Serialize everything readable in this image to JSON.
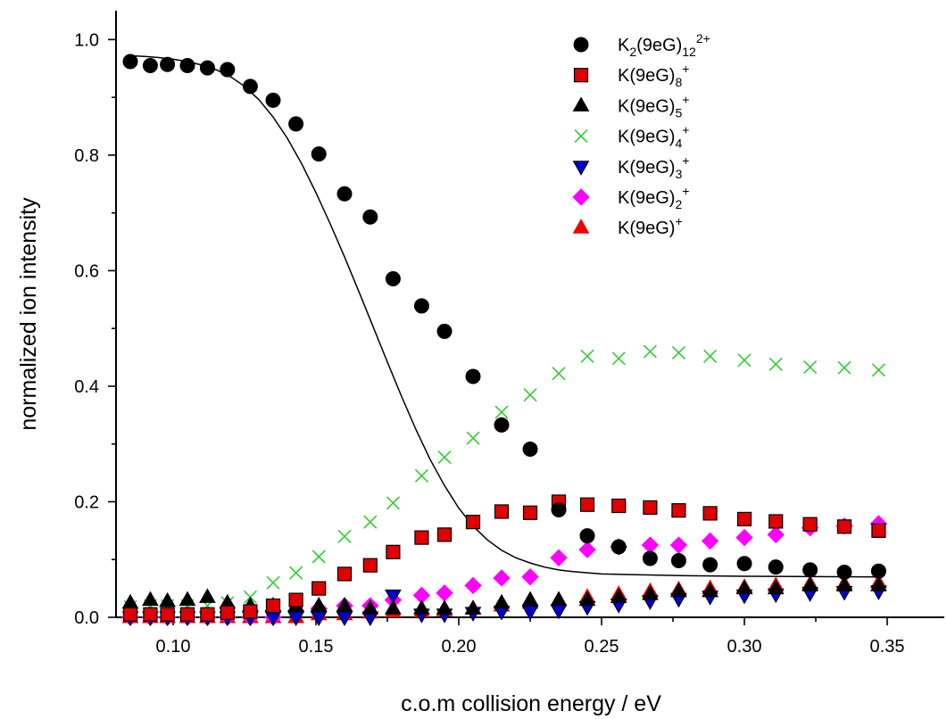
{
  "chart_data": {
    "type": "scatter",
    "title": "",
    "xlabel": "c.o.m collision energy / eV",
    "ylabel": "normalized ion intensity",
    "xlim": [
      0.08,
      0.37
    ],
    "ylim": [
      0,
      1.05
    ],
    "x_ticks": [
      "0.10",
      "0.15",
      "0.20",
      "0.25",
      "0.30",
      "0.35"
    ],
    "y_ticks": [
      "0.0",
      "0.2",
      "0.4",
      "0.6",
      "0.8",
      "1.0"
    ],
    "grid": false,
    "legend_position": "top-right",
    "fit_curve": {
      "series": "K2(9eG)12 2+",
      "type": "sigmoid",
      "color": "#000000",
      "points": [
        [
          0.085,
          0.972
        ],
        [
          0.09,
          0.971
        ],
        [
          0.095,
          0.969
        ],
        [
          0.1,
          0.966
        ],
        [
          0.105,
          0.962
        ],
        [
          0.11,
          0.956
        ],
        [
          0.115,
          0.948
        ],
        [
          0.12,
          0.936
        ],
        [
          0.125,
          0.919
        ],
        [
          0.13,
          0.896
        ],
        [
          0.135,
          0.866
        ],
        [
          0.14,
          0.829
        ],
        [
          0.145,
          0.785
        ],
        [
          0.15,
          0.735
        ],
        [
          0.155,
          0.681
        ],
        [
          0.16,
          0.624
        ],
        [
          0.165,
          0.564
        ],
        [
          0.17,
          0.503
        ],
        [
          0.175,
          0.442
        ],
        [
          0.18,
          0.382
        ],
        [
          0.185,
          0.325
        ],
        [
          0.19,
          0.273
        ],
        [
          0.195,
          0.228
        ],
        [
          0.2,
          0.189
        ],
        [
          0.205,
          0.158
        ],
        [
          0.21,
          0.134
        ],
        [
          0.215,
          0.116
        ],
        [
          0.22,
          0.103
        ],
        [
          0.225,
          0.094
        ],
        [
          0.23,
          0.087
        ],
        [
          0.235,
          0.082
        ],
        [
          0.24,
          0.079
        ],
        [
          0.245,
          0.077
        ],
        [
          0.25,
          0.075
        ],
        [
          0.26,
          0.074
        ],
        [
          0.27,
          0.073
        ],
        [
          0.28,
          0.072
        ],
        [
          0.3,
          0.071
        ],
        [
          0.347,
          0.07
        ]
      ]
    },
    "series": [
      {
        "label_main": "K",
        "label_sub1": "2",
        "label_mid": "(9eG)",
        "label_sub2": "12",
        "label_sup": "2+",
        "marker": "circle",
        "fill": "#000000",
        "stroke": "#000000",
        "points": [
          [
            0.085,
            0.962
          ],
          [
            0.092,
            0.955
          ],
          [
            0.098,
            0.957
          ],
          [
            0.105,
            0.955
          ],
          [
            0.112,
            0.951
          ],
          [
            0.119,
            0.948
          ],
          [
            0.127,
            0.919
          ],
          [
            0.135,
            0.895
          ],
          [
            0.143,
            0.854
          ],
          [
            0.151,
            0.802
          ],
          [
            0.16,
            0.733
          ],
          [
            0.169,
            0.693
          ],
          [
            0.177,
            0.586
          ],
          [
            0.187,
            0.539
          ],
          [
            0.195,
            0.495
          ],
          [
            0.205,
            0.417
          ],
          [
            0.215,
            0.333
          ],
          [
            0.225,
            0.291
          ],
          [
            0.235,
            0.186
          ],
          [
            0.245,
            0.141
          ],
          [
            0.256,
            0.122
          ],
          [
            0.267,
            0.102
          ],
          [
            0.277,
            0.098
          ],
          [
            0.288,
            0.091
          ],
          [
            0.3,
            0.093
          ],
          [
            0.311,
            0.087
          ],
          [
            0.323,
            0.082
          ],
          [
            0.335,
            0.078
          ],
          [
            0.347,
            0.08
          ]
        ]
      },
      {
        "label_main": "K",
        "label_sub1": "",
        "label_mid": "(9eG)",
        "label_sub2": "8",
        "label_sup": "+",
        "marker": "square",
        "fill": "#e00000",
        "stroke": "#000000",
        "points": [
          [
            0.085,
            0.005
          ],
          [
            0.092,
            0.005
          ],
          [
            0.098,
            0.005
          ],
          [
            0.105,
            0.005
          ],
          [
            0.112,
            0.005
          ],
          [
            0.119,
            0.008
          ],
          [
            0.127,
            0.01
          ],
          [
            0.135,
            0.02
          ],
          [
            0.143,
            0.03
          ],
          [
            0.151,
            0.05
          ],
          [
            0.16,
            0.075
          ],
          [
            0.169,
            0.09
          ],
          [
            0.177,
            0.113
          ],
          [
            0.187,
            0.138
          ],
          [
            0.195,
            0.143
          ],
          [
            0.205,
            0.165
          ],
          [
            0.215,
            0.183
          ],
          [
            0.225,
            0.181
          ],
          [
            0.235,
            0.2
          ],
          [
            0.245,
            0.195
          ],
          [
            0.256,
            0.193
          ],
          [
            0.267,
            0.19
          ],
          [
            0.277,
            0.185
          ],
          [
            0.288,
            0.18
          ],
          [
            0.3,
            0.17
          ],
          [
            0.311,
            0.166
          ],
          [
            0.323,
            0.161
          ],
          [
            0.335,
            0.157
          ],
          [
            0.347,
            0.15
          ]
        ]
      },
      {
        "label_main": "K",
        "label_sub1": "",
        "label_mid": "(9eG)",
        "label_sub2": "5",
        "label_sup": "+",
        "marker": "triangle-up",
        "fill": "#000000",
        "stroke": "#000000",
        "points": [
          [
            0.085,
            0.025
          ],
          [
            0.092,
            0.03
          ],
          [
            0.098,
            0.028
          ],
          [
            0.105,
            0.03
          ],
          [
            0.112,
            0.035
          ],
          [
            0.119,
            0.025
          ],
          [
            0.127,
            0.02
          ],
          [
            0.135,
            0.02
          ],
          [
            0.143,
            0.02
          ],
          [
            0.151,
            0.02
          ],
          [
            0.16,
            0.02
          ],
          [
            0.169,
            0.015
          ],
          [
            0.177,
            0.015
          ],
          [
            0.187,
            0.015
          ],
          [
            0.195,
            0.015
          ],
          [
            0.205,
            0.015
          ],
          [
            0.215,
            0.025
          ],
          [
            0.225,
            0.03
          ],
          [
            0.235,
            0.03
          ],
          [
            0.245,
            0.03
          ],
          [
            0.256,
            0.035
          ],
          [
            0.267,
            0.04
          ],
          [
            0.277,
            0.045
          ],
          [
            0.288,
            0.045
          ],
          [
            0.3,
            0.05
          ],
          [
            0.311,
            0.05
          ],
          [
            0.323,
            0.055
          ],
          [
            0.335,
            0.055
          ],
          [
            0.347,
            0.055
          ]
        ]
      },
      {
        "label_main": "K",
        "label_sub1": "",
        "label_mid": "(9eG)",
        "label_sub2": "4",
        "label_sup": "+",
        "marker": "x",
        "fill": "none",
        "stroke": "#33cc33",
        "points": [
          [
            0.085,
            0.018
          ],
          [
            0.092,
            0.02
          ],
          [
            0.098,
            0.02
          ],
          [
            0.105,
            0.02
          ],
          [
            0.112,
            0.02
          ],
          [
            0.119,
            0.025
          ],
          [
            0.127,
            0.035
          ],
          [
            0.135,
            0.06
          ],
          [
            0.143,
            0.077
          ],
          [
            0.151,
            0.105
          ],
          [
            0.16,
            0.14
          ],
          [
            0.169,
            0.165
          ],
          [
            0.177,
            0.198
          ],
          [
            0.187,
            0.245
          ],
          [
            0.195,
            0.277
          ],
          [
            0.205,
            0.31
          ],
          [
            0.215,
            0.355
          ],
          [
            0.225,
            0.385
          ],
          [
            0.235,
            0.422
          ],
          [
            0.245,
            0.452
          ],
          [
            0.256,
            0.448
          ],
          [
            0.267,
            0.46
          ],
          [
            0.277,
            0.458
          ],
          [
            0.288,
            0.452
          ],
          [
            0.3,
            0.445
          ],
          [
            0.311,
            0.438
          ],
          [
            0.323,
            0.433
          ],
          [
            0.335,
            0.432
          ],
          [
            0.347,
            0.428
          ]
        ]
      },
      {
        "label_main": "K",
        "label_sub1": "",
        "label_mid": "(9eG)",
        "label_sub2": "3",
        "label_sup": "+",
        "marker": "triangle-down",
        "fill": "#0000cc",
        "stroke": "#000000",
        "points": [
          [
            0.085,
            0.0
          ],
          [
            0.092,
            0.0
          ],
          [
            0.098,
            0.0
          ],
          [
            0.105,
            0.0
          ],
          [
            0.112,
            0.0
          ],
          [
            0.119,
            0.0
          ],
          [
            0.127,
            0.0
          ],
          [
            0.135,
            0.0
          ],
          [
            0.143,
            0.0
          ],
          [
            0.151,
            0.0
          ],
          [
            0.16,
            0.0
          ],
          [
            0.169,
            0.0
          ],
          [
            0.177,
            0.038
          ],
          [
            0.187,
            0.005
          ],
          [
            0.195,
            0.005
          ],
          [
            0.205,
            0.008
          ],
          [
            0.215,
            0.01
          ],
          [
            0.225,
            0.01
          ],
          [
            0.235,
            0.012
          ],
          [
            0.245,
            0.018
          ],
          [
            0.256,
            0.022
          ],
          [
            0.267,
            0.028
          ],
          [
            0.277,
            0.032
          ],
          [
            0.288,
            0.036
          ],
          [
            0.3,
            0.038
          ],
          [
            0.311,
            0.04
          ],
          [
            0.323,
            0.042
          ],
          [
            0.335,
            0.044
          ],
          [
            0.347,
            0.045
          ]
        ]
      },
      {
        "label_main": "K",
        "label_sub1": "",
        "label_mid": "(9eG)",
        "label_sub2": "2",
        "label_sup": "+",
        "marker": "diamond",
        "fill": "#ff00ff",
        "stroke": "#ff00ff",
        "points": [
          [
            0.085,
            0.0
          ],
          [
            0.092,
            0.0
          ],
          [
            0.098,
            0.0
          ],
          [
            0.105,
            0.0
          ],
          [
            0.112,
            0.0
          ],
          [
            0.119,
            0.0
          ],
          [
            0.127,
            0.0
          ],
          [
            0.135,
            0.0
          ],
          [
            0.143,
            0.01
          ],
          [
            0.151,
            0.015
          ],
          [
            0.16,
            0.02
          ],
          [
            0.169,
            0.02
          ],
          [
            0.177,
            0.03
          ],
          [
            0.187,
            0.038
          ],
          [
            0.195,
            0.042
          ],
          [
            0.205,
            0.055
          ],
          [
            0.215,
            0.068
          ],
          [
            0.225,
            0.07
          ],
          [
            0.235,
            0.103
          ],
          [
            0.245,
            0.117
          ],
          [
            0.256,
            0.122
          ],
          [
            0.267,
            0.125
          ],
          [
            0.277,
            0.125
          ],
          [
            0.288,
            0.132
          ],
          [
            0.3,
            0.138
          ],
          [
            0.311,
            0.143
          ],
          [
            0.323,
            0.155
          ],
          [
            0.335,
            0.158
          ],
          [
            0.347,
            0.162
          ]
        ]
      },
      {
        "label_main": "K",
        "label_sub1": "",
        "label_mid": "(9eG)",
        "label_sub2": "",
        "label_sup": "+",
        "marker": "triangle-up",
        "fill": "#ee0000",
        "stroke": "#ee0000",
        "points": [
          [
            0.085,
            0.0
          ],
          [
            0.092,
            0.0
          ],
          [
            0.098,
            0.0
          ],
          [
            0.105,
            0.0
          ],
          [
            0.112,
            0.0
          ],
          [
            0.119,
            0.0
          ],
          [
            0.127,
            0.0
          ],
          [
            0.135,
            0.0
          ],
          [
            0.143,
            0.0
          ],
          [
            0.151,
            0.005
          ],
          [
            0.16,
            0.005
          ],
          [
            0.169,
            0.008
          ],
          [
            0.177,
            0.01
          ],
          [
            0.187,
            0.01
          ],
          [
            0.195,
            0.012
          ],
          [
            0.205,
            0.015
          ],
          [
            0.215,
            0.02
          ],
          [
            0.225,
            0.025
          ],
          [
            0.235,
            0.03
          ],
          [
            0.245,
            0.035
          ],
          [
            0.256,
            0.04
          ],
          [
            0.267,
            0.045
          ],
          [
            0.277,
            0.048
          ],
          [
            0.288,
            0.05
          ],
          [
            0.3,
            0.052
          ],
          [
            0.311,
            0.055
          ],
          [
            0.323,
            0.058
          ],
          [
            0.335,
            0.058
          ],
          [
            0.347,
            0.06
          ]
        ]
      }
    ]
  }
}
